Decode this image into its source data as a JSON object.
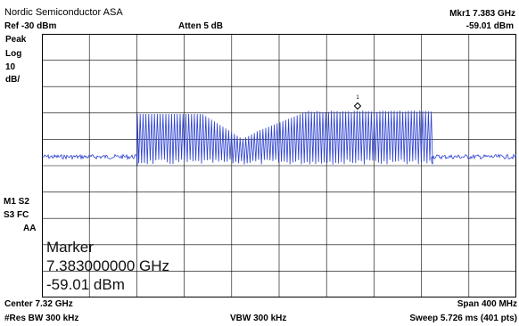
{
  "header": {
    "company": "Nordic Semiconductor ASA",
    "marker_label": "Mkr1  7.383 GHz",
    "marker_level": "-59.01 dBm",
    "ref_level": "Ref -30 dBm",
    "attenuation": "Atten 5 dB"
  },
  "left_panel": {
    "detector": "Peak",
    "scale_type": "Log",
    "scale_value": "10",
    "scale_unit": "dB/",
    "mode_line1": "M1  S2",
    "mode_line2": "S3  FC",
    "mode_line3": "AA"
  },
  "marker_readout": {
    "title": "Marker",
    "frequency": "7.383000000 GHz",
    "amplitude": "-59.01 dBm",
    "marker_number": "1"
  },
  "footer": {
    "center": "Center 7.32 GHz",
    "span": "Span 400 MHz",
    "rbw": "#Res BW 300 kHz",
    "vbw": "VBW 300 kHz",
    "sweep": "Sweep 5.726 ms (401 pts)"
  },
  "colors": {
    "trace": "#2a3fd0",
    "grid": "#000000",
    "background": "#ffffff"
  }
}
